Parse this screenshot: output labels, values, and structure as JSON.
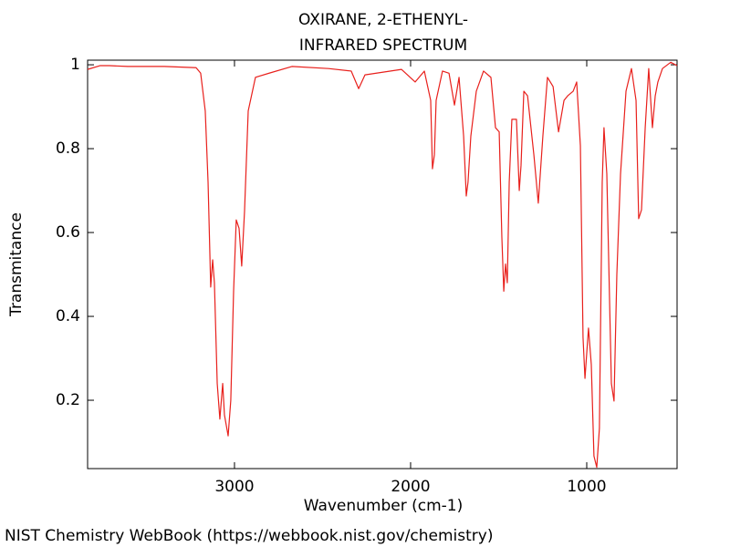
{
  "chart_data": {
    "type": "line",
    "title": "OXIRANE, 2-ETHENYL-",
    "subtitle": "INFRARED SPECTRUM",
    "x_label": "Wavenumber (cm-1)",
    "y_label": "Transmitance",
    "footer": "NIST Chemistry WebBook (https://webbook.nist.gov/chemistry)",
    "color": "#e8201c",
    "xlim": [
      3834,
      487
    ],
    "ylim": [
      0.037,
      1.011
    ],
    "xticks": [
      3000,
      2000,
      1000
    ],
    "yticks": [
      0.2,
      0.4,
      0.6,
      0.8,
      1
    ],
    "x": [
      3834,
      3762,
      3710,
      3606,
      3399,
      3218,
      3192,
      3166,
      3150,
      3135,
      3124,
      3114,
      3098,
      3083,
      3067,
      3057,
      3036,
      3021,
      3005,
      2990,
      2974,
      2959,
      2943,
      2922,
      2881,
      2803,
      2674,
      2466,
      2337,
      2295,
      2259,
      2052,
      1974,
      1922,
      1886,
      1876,
      1865,
      1855,
      1819,
      1782,
      1751,
      1725,
      1699,
      1684,
      1674,
      1658,
      1627,
      1586,
      1544,
      1518,
      1497,
      1482,
      1471,
      1461,
      1451,
      1440,
      1425,
      1399,
      1383,
      1373,
      1357,
      1336,
      1300,
      1275,
      1249,
      1223,
      1191,
      1160,
      1129,
      1108,
      1077,
      1057,
      1036,
      1021,
      1010,
      990,
      974,
      959,
      943,
      928,
      912,
      902,
      886,
      860,
      845,
      829,
      808,
      777,
      746,
      720,
      705,
      689,
      668,
      648,
      627,
      611,
      596,
      570,
      523,
      487
    ],
    "values": [
      0.989,
      0.998,
      0.998,
      0.996,
      0.996,
      0.993,
      0.98,
      0.89,
      0.72,
      0.47,
      0.535,
      0.48,
      0.24,
      0.155,
      0.24,
      0.165,
      0.115,
      0.2,
      0.46,
      0.63,
      0.61,
      0.52,
      0.65,
      0.89,
      0.97,
      0.98,
      0.996,
      0.991,
      0.985,
      0.943,
      0.976,
      0.989,
      0.959,
      0.985,
      0.915,
      0.752,
      0.785,
      0.915,
      0.985,
      0.98,
      0.904,
      0.97,
      0.83,
      0.687,
      0.72,
      0.83,
      0.937,
      0.985,
      0.97,
      0.85,
      0.84,
      0.59,
      0.46,
      0.525,
      0.48,
      0.72,
      0.87,
      0.87,
      0.7,
      0.76,
      0.937,
      0.926,
      0.785,
      0.67,
      0.83,
      0.97,
      0.948,
      0.84,
      0.915,
      0.926,
      0.937,
      0.959,
      0.807,
      0.35,
      0.252,
      0.372,
      0.285,
      0.067,
      0.04,
      0.133,
      0.72,
      0.85,
      0.74,
      0.24,
      0.198,
      0.5,
      0.74,
      0.937,
      0.991,
      0.915,
      0.633,
      0.654,
      0.85,
      0.991,
      0.85,
      0.926,
      0.959,
      0.991,
      1.006,
      0.998
    ]
  }
}
